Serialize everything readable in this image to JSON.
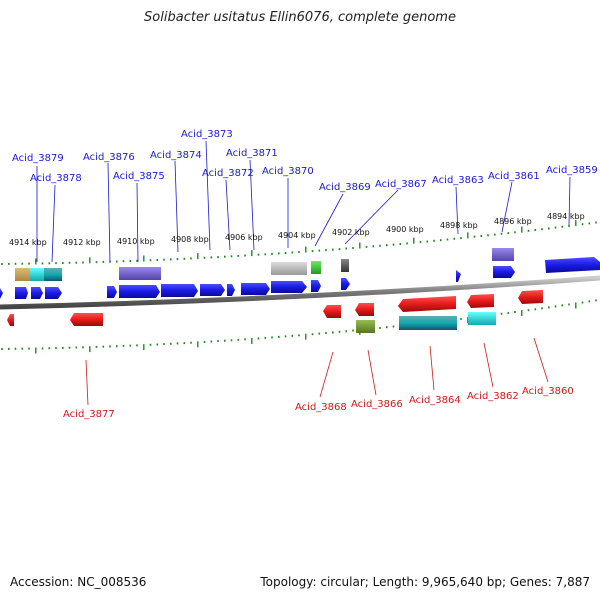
{
  "title": "Solibacter usitatus Ellin6076, complete genome",
  "footer": {
    "accession": "Accession: NC_008536",
    "stats": "Topology: circular; Length: 9,965,640 bp; Genes: 7,887"
  },
  "kbp_labels": [
    "4914 kbp",
    "4912 kbp",
    "4910 kbp",
    "4908 kbp",
    "4906 kbp",
    "4904 kbp",
    "4902 kbp",
    "4900 kbp",
    "4898 kbp",
    "4896 kbp",
    "4894 kbp"
  ],
  "top_genes": [
    "Acid_3879",
    "Acid_3878",
    "Acid_3876",
    "Acid_3875",
    "Acid_3874",
    "Acid_3873",
    "Acid_3872",
    "Acid_3871",
    "Acid_3870",
    "Acid_3869",
    "Acid_3867",
    "Acid_3863",
    "Acid_3861",
    "Acid_3859"
  ],
  "bottom_genes": [
    "Acid_3877",
    "Acid_3868",
    "Acid_3866",
    "Acid_3864",
    "Acid_3862",
    "Acid_3860"
  ],
  "colors": {
    "forward": "#1a1ae6",
    "reverse": "#e61a1a",
    "purple": "#7766cc",
    "cyan": "#22dddd",
    "olive": "#779933",
    "green": "#33cc33",
    "gray": "#bbbbbb",
    "dark": "#555555",
    "tan": "#ccaa66",
    "teal": "#4488aa",
    "tick": "#228822"
  }
}
